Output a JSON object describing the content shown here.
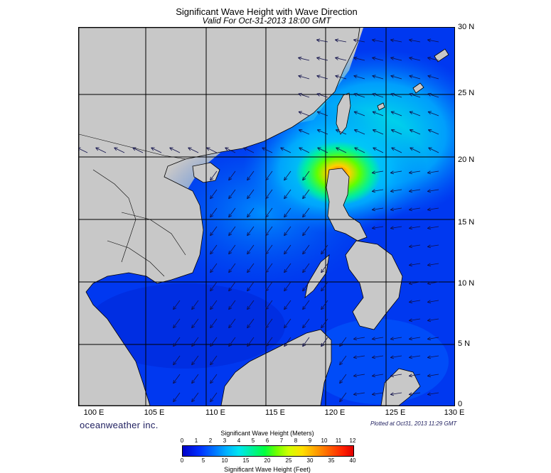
{
  "title": "Significant Wave Height with Wave Direction",
  "subtitle": "Valid For Oct-31-2013 18:00 GMT",
  "lat_labels": [
    "30 N",
    "25 N",
    "20 N",
    "15 N",
    "10 N",
    "5 N",
    "0"
  ],
  "lon_labels": [
    "100 E",
    "105 E",
    "110 E",
    "115 E",
    "120 E",
    "125 E",
    "130 E"
  ],
  "brand": "oceanweather inc.",
  "plotted": "Plotted at Oct31, 2013 11:29 GMT",
  "colorbar": {
    "title_meters": "Significant Wave Height (Meters)",
    "title_feet": "Significant Wave Height (Feet)",
    "meters_ticks": [
      "0",
      "1",
      "2",
      "3",
      "4",
      "5",
      "6",
      "7",
      "8",
      "9",
      "10",
      "11",
      "12"
    ],
    "feet_ticks": [
      "0",
      "5",
      "10",
      "15",
      "20",
      "25",
      "30",
      "35",
      "40"
    ]
  },
  "colors": {
    "land": "#c8c8c8",
    "ocean_low": "#0000c8",
    "ocean_mid": "#00b4ff",
    "peak": "#ff6000"
  }
}
